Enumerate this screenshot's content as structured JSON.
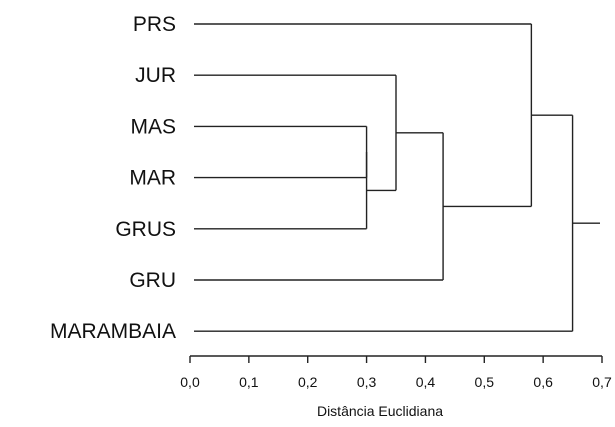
{
  "chart_data": {
    "type": "dendrogram",
    "leaves": [
      "PRS",
      "JUR",
      "MAS",
      "MAR",
      "GRUS",
      "GRU",
      "MARAMBAIA"
    ],
    "merges": [
      {
        "left": "MAS",
        "right": "MAR",
        "height": 0.3
      },
      {
        "left": "MAS+MAR",
        "right": "GRUS",
        "height": 0.3
      },
      {
        "left": "JUR",
        "right": "MAS+MAR+GRUS",
        "height": 0.35
      },
      {
        "left": "JUR+MAS+MAR+GRUS",
        "right": "GRU",
        "height": 0.43
      },
      {
        "left": "PRS",
        "right": "JUR+MAS+MAR+GRUS+GRU",
        "height": 0.58
      },
      {
        "left": "PRS+JUR+MAS+MAR+GRUS+GRU",
        "right": "MARAMBAIA",
        "height": 0.65
      }
    ],
    "xlabel": "Distância Euclidiana",
    "xlim": [
      0.0,
      0.7
    ],
    "xticks": [
      "0,0",
      "0,1",
      "0,2",
      "0,3",
      "0,4",
      "0,5",
      "0,6",
      "0,7"
    ],
    "grid": false
  }
}
